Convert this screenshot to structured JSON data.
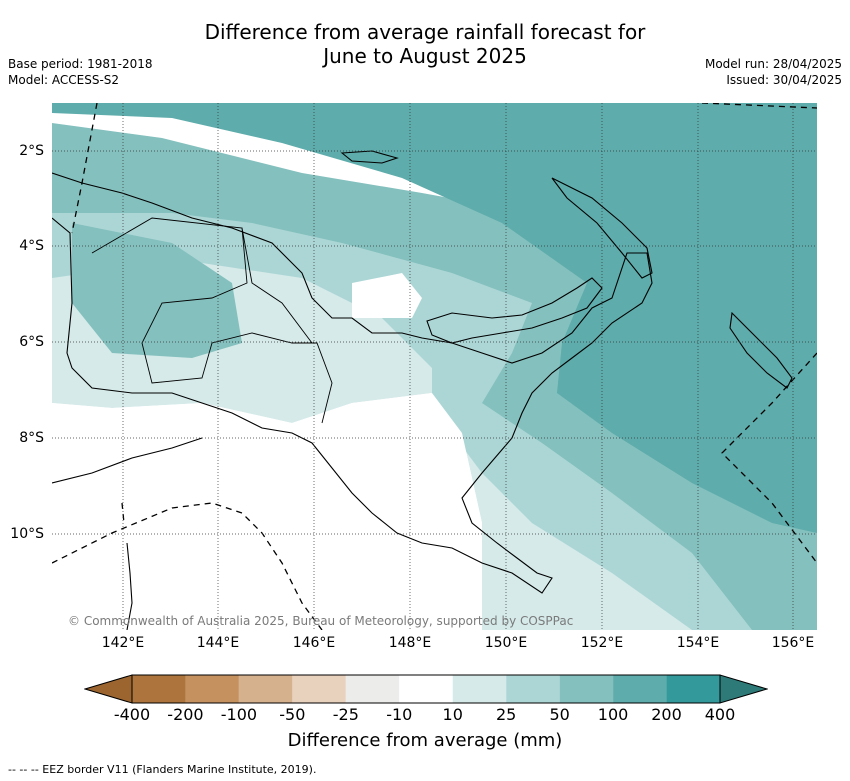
{
  "title_line1": "Difference from average rainfall forecast for",
  "title_line2": "June to August 2025",
  "base_period": "Base period: 1981-2018",
  "model": "Model: ACCESS-S2",
  "model_run": "Model run: 28/04/2025",
  "issued": "Issued: 30/04/2025",
  "lat_labels": [
    "2°S",
    "4°S",
    "6°S",
    "8°S",
    "10°S"
  ],
  "lon_labels": [
    "142°E",
    "144°E",
    "146°E",
    "148°E",
    "150°E",
    "152°E",
    "154°E",
    "156°E"
  ],
  "copyright": "© Commonwealth of Australia 2025, Bureau of Meteorology, supported by COSPPac",
  "colorbar": {
    "ticks": [
      "-400",
      "-200",
      "-100",
      "-50",
      "-25",
      "-10",
      "10",
      "25",
      "50",
      "100",
      "200",
      "400"
    ],
    "colors": [
      "#9c6530",
      "#ad743d",
      "#c4915f",
      "#d6b18e",
      "#e8d1bd",
      "#ececea",
      "#ffffff",
      "#d5eae9",
      "#acd6d5",
      "#84c0be",
      "#5eacab",
      "#34999a",
      "#2d7a78"
    ],
    "title": "Difference from average (mm)"
  },
  "footnote": "-- -- -- EEZ border V11 (Flanders Marine Institute, 2019).",
  "map_palette": {
    "band_over_200": "#34999a",
    "band_100_200": "#5eacab",
    "band_50_100": "#84c0be",
    "band_25_50": "#acd6d5",
    "band_10_25": "#d5eae9",
    "band_neutral": "#ffffff",
    "coastline": "#000000",
    "gridline": "#333333"
  }
}
